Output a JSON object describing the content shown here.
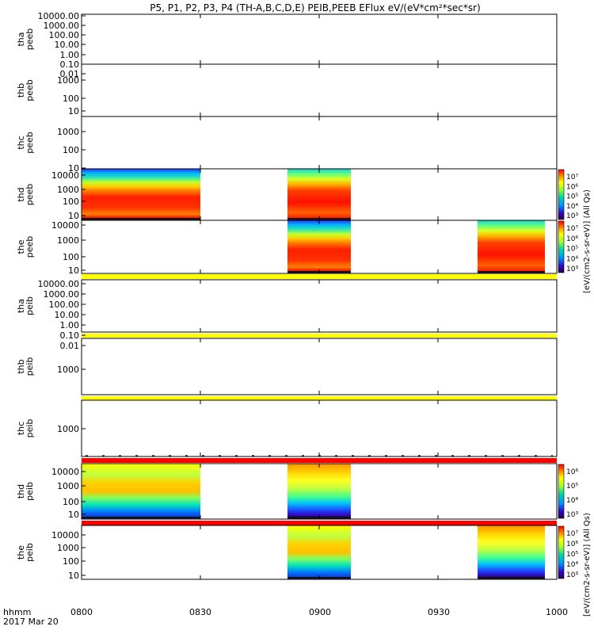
{
  "title": "P5, P1, P2, P3, P4 (TH-A,B,C,D,E) PEIB,PEEB EFlux eV/(eV*cm²*sec*sr)",
  "footer": {
    "time_label": "hhmm",
    "date_label": "2017 Mar 20"
  },
  "colors": {
    "yellow_band": "#ffff00",
    "red_band": "#ff0000",
    "frame": "#000000"
  },
  "chart_data": {
    "type": "heatmap",
    "x_axis": {
      "range": [
        "0800",
        "1000"
      ],
      "tick_labels": [
        "0800",
        "0830",
        "0900",
        "0930",
        "1000"
      ]
    },
    "panels": [
      {
        "ylabel": "tha peeb",
        "ticks": [
          "10000.00",
          "1000.00",
          "100.00",
          "10.00",
          "1.00",
          "0.10",
          "0.01"
        ],
        "data_blocks": []
      },
      {
        "ylabel": "thb peeb",
        "ticks": [
          "1000",
          "100",
          "10"
        ],
        "data_blocks": []
      },
      {
        "ylabel": "thc peeb",
        "ticks": [
          "1000",
          "100",
          "10"
        ],
        "data_blocks": []
      },
      {
        "ylabel": "thd peeb",
        "ticks": [
          "10000",
          "1000",
          "100",
          "10"
        ],
        "data_blocks": [
          {
            "start": "0800",
            "end": "0830"
          },
          {
            "start": "0852",
            "end": "0908"
          }
        ],
        "colorbar": {
          "ticks": [
            "10⁷",
            "10⁶",
            "10⁵",
            "10⁴",
            "10³"
          ]
        }
      },
      {
        "ylabel": "the peeb",
        "ticks": [
          "10000",
          "1000",
          "100",
          "10"
        ],
        "data_blocks": [
          {
            "start": "0852",
            "end": "0908"
          },
          {
            "start": "0940",
            "end": "0957"
          }
        ],
        "colorbar": {
          "ticks": [
            "10⁷",
            "10⁶",
            "10⁵",
            "10⁴",
            "10³"
          ]
        }
      },
      {
        "ylabel": "tha peib",
        "ticks": [
          "10000.00",
          "1000.00",
          "100.00",
          "10.00",
          "1.00",
          "0.10",
          "0.01"
        ],
        "data_blocks": []
      },
      {
        "ylabel": "thb peib",
        "ticks": [
          "1000"
        ],
        "data_blocks": []
      },
      {
        "ylabel": "thc peib",
        "ticks": [
          "1000"
        ],
        "data_blocks": []
      },
      {
        "ylabel": "thd peib",
        "ticks": [
          "10000",
          "1000",
          "100",
          "10"
        ],
        "data_blocks": [
          {
            "start": "0800",
            "end": "0830"
          },
          {
            "start": "0852",
            "end": "0908"
          }
        ],
        "colorbar": {
          "ticks": [
            "10⁶",
            "10⁵",
            "10⁴",
            "10³"
          ]
        }
      },
      {
        "ylabel": "the peib",
        "ticks": [
          "10000",
          "1000",
          "100",
          "10"
        ],
        "data_blocks": [
          {
            "start": "0852",
            "end": "0908"
          },
          {
            "start": "0940",
            "end": "0957"
          }
        ],
        "colorbar": {
          "ticks": [
            "10⁷",
            "10⁶",
            "10⁵",
            "10⁴",
            "10³"
          ]
        }
      }
    ],
    "colorbar_labels": {
      "electron": "[eV/(cm2-s-sr-eV)] (All Qs)",
      "ion": "[eV/(cm2-s-sr-eV)] (All Qs)"
    }
  }
}
